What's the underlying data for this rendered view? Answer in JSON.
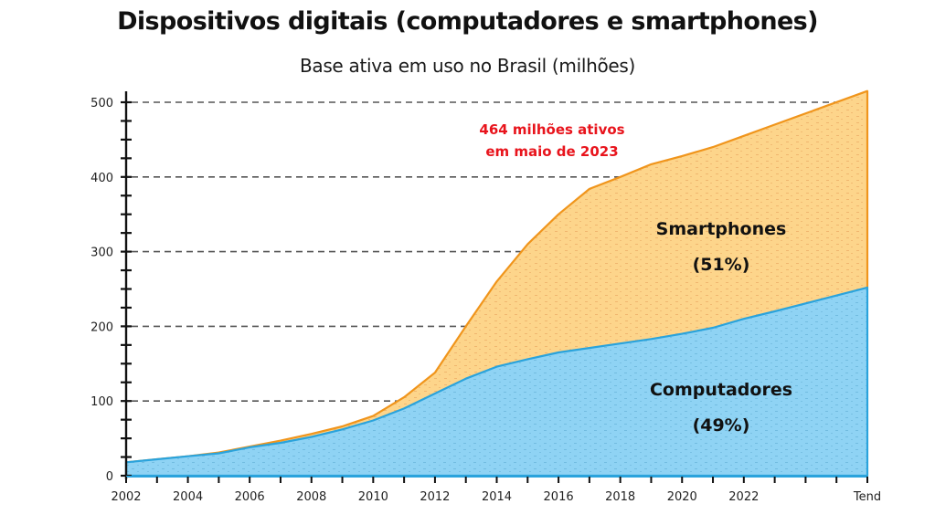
{
  "chart_data": {
    "type": "area",
    "stacked": true,
    "title": "Dispositivos digitais (computadores e smartphones)",
    "subtitle": "Base ativa em uso no Brasil (milhões)",
    "xlabel": "",
    "ylabel": "",
    "ylim": [
      0,
      525
    ],
    "yticks": [
      0,
      100,
      200,
      300,
      400,
      500
    ],
    "yminor_step": 25,
    "grid": "dashed horizontal at major y ticks",
    "x": [
      2002,
      2003,
      2004,
      2005,
      2006,
      2007,
      2008,
      2009,
      2010,
      2011,
      2012,
      2013,
      2014,
      2015,
      2016,
      2017,
      2018,
      2019,
      2020,
      2021,
      2022,
      2023,
      2026
    ],
    "xticks_minor": [
      2002,
      2003,
      2004,
      2005,
      2006,
      2007,
      2008,
      2009,
      2010,
      2011,
      2012,
      2013,
      2014,
      2015,
      2016,
      2017,
      2018,
      2019,
      2020,
      2021,
      2022,
      2023,
      2024,
      2025,
      2026
    ],
    "xtick_labels": [
      {
        "x": 2002,
        "label": "2002"
      },
      {
        "x": 2004,
        "label": "2004"
      },
      {
        "x": 2006,
        "label": "2006"
      },
      {
        "x": 2008,
        "label": "2008"
      },
      {
        "x": 2010,
        "label": "2010"
      },
      {
        "x": 2012,
        "label": "2012"
      },
      {
        "x": 2014,
        "label": "2014"
      },
      {
        "x": 2016,
        "label": "2016"
      },
      {
        "x": 2018,
        "label": "2018"
      },
      {
        "x": 2020,
        "label": "2020"
      },
      {
        "x": 2022,
        "label": "2022"
      },
      {
        "x": 2026,
        "label": "Tend"
      }
    ],
    "xlim": [
      2002,
      2026
    ],
    "series": [
      {
        "name": "Computadores",
        "label": "Computadores",
        "share_label": "(49%)",
        "fill": "#8fd3f4",
        "line": "#2aa3dc",
        "dot": "#5aa9cf",
        "values": [
          18,
          22,
          26,
          30,
          38,
          44,
          52,
          62,
          74,
          90,
          110,
          130,
          146,
          156,
          165,
          171,
          177,
          183,
          190,
          198,
          210,
          220,
          252
        ]
      },
      {
        "name": "Smartphones",
        "label": "Smartphones",
        "share_label": "(51%)",
        "fill": "#fdd58b",
        "line": "#f0951c",
        "dot": "#e7a15c",
        "values": [
          0,
          0,
          0,
          1,
          1,
          3,
          4,
          4,
          6,
          15,
          28,
          70,
          114,
          154,
          185,
          213,
          223,
          234,
          238,
          242,
          245,
          250,
          263
        ]
      }
    ],
    "totals": [
      18,
      22,
      26,
      31,
      39,
      47,
      56,
      66,
      80,
      105,
      138,
      200,
      260,
      310,
      350,
      384,
      400,
      417,
      428,
      440,
      455,
      470,
      515
    ],
    "annotations": [
      {
        "text_line1": "464 milhões ativos",
        "text_line2": "em maio de 2023",
        "color": "#e8141c",
        "position": "top-center"
      }
    ]
  }
}
